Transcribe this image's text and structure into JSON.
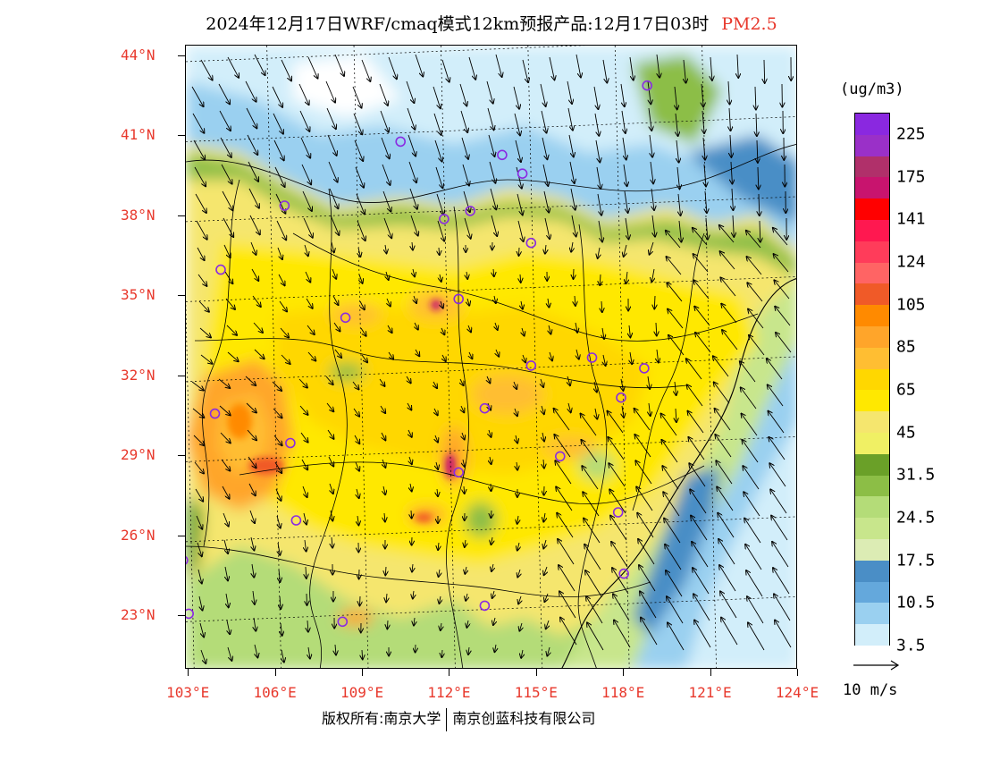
{
  "title": {
    "text": "2024年12月17日WRF/cmaq模式12km预报产品:12月17日03时",
    "pollutant": "PM2.5"
  },
  "map": {
    "lat_labels": [
      "44°N",
      "41°N",
      "38°N",
      "35°N",
      "32°N",
      "29°N",
      "26°N",
      "23°N"
    ],
    "lon_labels": [
      "103°E",
      "106°E",
      "109°E",
      "112°E",
      "115°E",
      "118°E",
      "121°E",
      "124°E"
    ],
    "extent": {
      "lon_min": 102.9,
      "lon_max": 124,
      "lat_min": 21.0,
      "lat_max": 44.4
    },
    "station_marker_color": "#8a2be2",
    "stations_lonlat": [
      [
        118.8,
        42.9
      ],
      [
        110.3,
        40.8
      ],
      [
        113.8,
        40.3
      ],
      [
        114.5,
        39.6
      ],
      [
        106.3,
        38.4
      ],
      [
        111.8,
        37.9
      ],
      [
        112.7,
        38.2
      ],
      [
        114.8,
        37.0
      ],
      [
        104.1,
        36.0
      ],
      [
        112.3,
        34.9
      ],
      [
        108.4,
        34.2
      ],
      [
        114.8,
        32.4
      ],
      [
        116.9,
        32.7
      ],
      [
        118.7,
        32.3
      ],
      [
        103.9,
        30.6
      ],
      [
        113.2,
        30.8
      ],
      [
        117.9,
        31.2
      ],
      [
        106.5,
        29.5
      ],
      [
        115.8,
        29.0
      ],
      [
        112.3,
        28.4
      ],
      [
        106.7,
        26.6
      ],
      [
        117.8,
        26.9
      ],
      [
        102.8,
        25.1
      ],
      [
        108.3,
        22.8
      ],
      [
        113.2,
        23.4
      ],
      [
        103.0,
        23.1
      ],
      [
        118.0,
        24.6
      ]
    ]
  },
  "colorbar": {
    "unit": "(ug/m3)",
    "colors": [
      "#8a28e0",
      "#9a30c8",
      "#b0306a",
      "#c8146e",
      "#ff0000",
      "#ff1850",
      "#ff3c5a",
      "#ff6464",
      "#f05a28",
      "#ff8a00",
      "#ffa52a",
      "#ffbe32",
      "#ffd700",
      "#ffe800",
      "#f5e66e",
      "#f0f064",
      "#6aa028",
      "#8cbe46",
      "#b4dc78",
      "#c8e68c",
      "#dcecb4",
      "#4a8ec6",
      "#64a8dc",
      "#9ad0f0",
      "#d2eefa"
    ],
    "labels": [
      "225",
      "175",
      "141",
      "124",
      "105",
      "85",
      "65",
      "45",
      "31.5",
      "24.5",
      "17.5",
      "10.5",
      "3.5"
    ]
  },
  "wind_key": {
    "label": "10 m/s"
  },
  "footer": {
    "copyright": "版权所有:南京大学",
    "company": "南京创蓝科技有限公司"
  }
}
